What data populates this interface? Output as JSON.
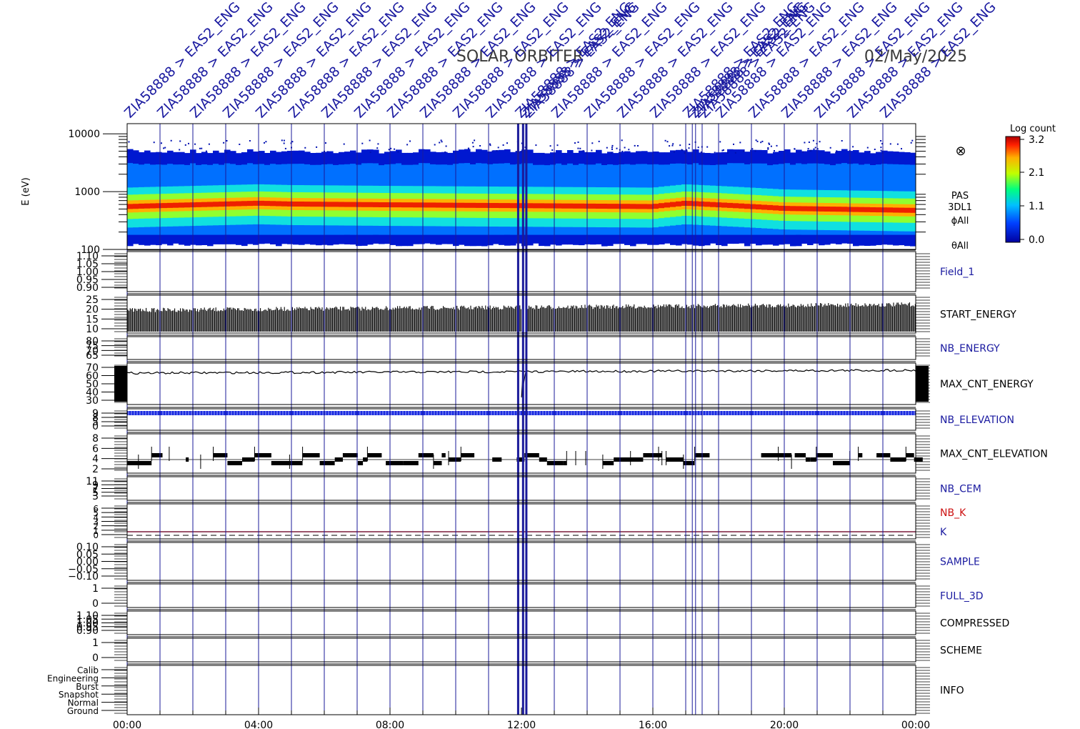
{
  "header": {
    "mission": "SOLAR ORBITER",
    "date": "02/May/2025",
    "top_label_prefix": "ZIA58888 > EAS2_ENG"
  },
  "colors": {
    "axis": "#000000",
    "vline": "#1a1a9a",
    "blue_label": "#1a1aa0",
    "red_label": "#cc1111",
    "k_line": "#7a1a3a"
  },
  "chart_data": {
    "type": "heatmap",
    "x_axis": {
      "range_hours": [
        0,
        24
      ],
      "tick_labels": [
        "00:00",
        "04:00",
        "08:00",
        "12:00",
        "16:00",
        "20:00",
        "00:00"
      ],
      "tick_hours": [
        0,
        4,
        8,
        12,
        16,
        20,
        24
      ]
    },
    "event_lines_hours": [
      0,
      1,
      2,
      3,
      4,
      5,
      6,
      7,
      8,
      9,
      10,
      11,
      11.9,
      12.05,
      12.15,
      13,
      14,
      15,
      16,
      17,
      17.2,
      17.3,
      17.5,
      18,
      19,
      20,
      21,
      22,
      23
    ],
    "spectrogram": {
      "ylabel": "E (eV)",
      "yscale": "log",
      "ylim": [
        100,
        15000
      ],
      "y_ticks": [
        "10000",
        "1000",
        "100"
      ],
      "band_edges_ev": {
        "bottom": 120,
        "top": 5000
      },
      "peak_energy_ev_by_hour": [
        [
          0,
          560
        ],
        [
          2,
          600
        ],
        [
          4,
          640
        ],
        [
          5,
          620
        ],
        [
          8,
          600
        ],
        [
          12,
          580
        ],
        [
          16,
          560
        ],
        [
          17,
          640
        ],
        [
          20,
          520
        ],
        [
          24,
          480
        ]
      ],
      "colorbar": {
        "title": "Log count",
        "ticks": [
          "3.2",
          "2.1",
          "1.1",
          "0.0"
        ]
      },
      "side_labels": [
        "PAS",
        "3DL1",
        "ϕAll",
        "θAll"
      ]
    },
    "panels": [
      {
        "name": "Field_1",
        "label_color": "blue",
        "y_ticks": [
          "1.10",
          "1.05",
          "1.00",
          "0.95",
          "0.90"
        ]
      },
      {
        "name": "START_ENERGY",
        "label_color": "black",
        "y_ticks": [
          "25",
          "20",
          "15",
          "10"
        ],
        "range": [
          10,
          22
        ]
      },
      {
        "name": "NB_ENERGY",
        "label_color": "blue",
        "y_ticks": [
          "80",
          "75",
          "70",
          "65"
        ]
      },
      {
        "name": "MAX_CNT_ENERGY",
        "label_color": "black",
        "y_ticks": [
          "70",
          "60",
          "50",
          "40",
          "30"
        ],
        "level_start": 63,
        "level_end": 67
      },
      {
        "name": "NB_ELEVATION",
        "label_color": "blue",
        "y_ticks": [
          "9",
          "8",
          "5",
          "0"
        ],
        "level": 9
      },
      {
        "name": "MAX_CNT_ELEVATION",
        "label_color": "black",
        "y_ticks": [
          "8",
          "6",
          "4",
          "2"
        ],
        "levels": [
          3.5,
          4,
          4.5
        ]
      },
      {
        "name": "NB_CEM",
        "label_color": "blue",
        "y_ticks": [
          "11",
          "9",
          "7",
          "5",
          "3"
        ]
      },
      {
        "name": "NB_K",
        "label_color": "red",
        "second_name": "K",
        "second_label_color": "blue",
        "y_ticks": [
          "6",
          "5",
          "4",
          "3",
          "2",
          "1",
          "0"
        ],
        "k_level": 1
      },
      {
        "name": "SAMPLE",
        "label_color": "blue",
        "y_ticks": [
          "0.10",
          "0.05",
          "0.00",
          "−0.05",
          "−0.10"
        ]
      },
      {
        "name": "FULL_3D",
        "label_color": "blue",
        "y_ticks": [
          "1",
          "0"
        ]
      },
      {
        "name": "COMPRESSED",
        "label_color": "black",
        "y_ticks": [
          "1.10",
          "1.05",
          "1.00",
          "0.95",
          "0.90"
        ]
      },
      {
        "name": "SCHEME",
        "label_color": "black",
        "y_ticks": [
          "1",
          "0"
        ]
      },
      {
        "name": "INFO",
        "label_color": "black",
        "y_ticks": [
          "Calib",
          "Engineering",
          "Burst",
          "Snapshot",
          "Normal",
          "Ground"
        ]
      }
    ]
  }
}
